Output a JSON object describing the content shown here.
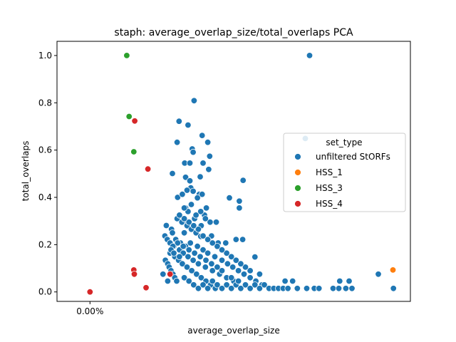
{
  "chart_data": {
    "type": "scatter",
    "title": "staph: average_overlap_size/total_overlaps PCA",
    "xlabel": "average_overlap_size",
    "ylabel": "total_overlaps",
    "ylim": [
      -0.04,
      1.06
    ],
    "yticks": [
      0.0,
      0.2,
      0.4,
      0.6,
      0.8,
      1.0
    ],
    "ytick_labels": [
      "0.0",
      "0.2",
      "0.4",
      "0.6",
      "0.8",
      "1.0"
    ],
    "xticks": [
      0.0
    ],
    "xtick_labels": [
      "0.00%"
    ],
    "xlim": [
      -0.0007,
      0.0068
    ],
    "grid": false,
    "legend": {
      "title": "set_type",
      "placement": "center-right"
    },
    "series": [
      {
        "name": "unfiltered StORFs",
        "color": "#1f77b4",
        "points": [
          [
            0.00466,
            1.0
          ],
          [
            0.00457,
            0.649
          ],
          [
            0.00221,
            0.809
          ],
          [
            0.00189,
            0.722
          ],
          [
            0.00208,
            0.706
          ],
          [
            0.00238,
            0.662
          ],
          [
            0.00185,
            0.633
          ],
          [
            0.0025,
            0.633
          ],
          [
            0.00217,
            0.605
          ],
          [
            0.00219,
            0.591
          ],
          [
            0.00254,
            0.574
          ],
          [
            0.00201,
            0.545
          ],
          [
            0.00212,
            0.545
          ],
          [
            0.0024,
            0.545
          ],
          [
            0.00175,
            0.501
          ],
          [
            0.00203,
            0.485
          ],
          [
            0.00212,
            0.47
          ],
          [
            0.00234,
            0.487
          ],
          [
            0.00252,
            0.518
          ],
          [
            0.00214,
            0.44
          ],
          [
            0.00219,
            0.426
          ],
          [
            0.00232,
            0.413
          ],
          [
            0.00238,
            0.413
          ],
          [
            0.00325,
            0.472
          ],
          [
            0.00296,
            0.398
          ],
          [
            0.00317,
            0.384
          ],
          [
            0.00317,
            0.355
          ],
          [
            0.00203,
            0.355
          ],
          [
            0.00247,
            0.355
          ],
          [
            0.00243,
            0.325
          ],
          [
            0.00222,
            0.31
          ],
          [
            0.00255,
            0.295
          ],
          [
            0.00268,
            0.295
          ],
          [
            0.00203,
            0.295
          ],
          [
            0.00206,
            0.28
          ],
          [
            0.00236,
            0.28
          ],
          [
            0.00258,
            0.237
          ],
          [
            0.0031,
            0.222
          ],
          [
            0.00324,
            0.222
          ],
          [
            0.00288,
            0.207
          ],
          [
            0.00272,
            0.207
          ],
          [
            0.0035,
            0.148
          ],
          [
            0.00162,
            0.281
          ],
          [
            0.00173,
            0.265
          ],
          [
            0.00159,
            0.237
          ],
          [
            0.00164,
            0.222
          ],
          [
            0.0017,
            0.207
          ],
          [
            0.00178,
            0.193
          ],
          [
            0.0019,
            0.178
          ],
          [
            0.00198,
            0.164
          ],
          [
            0.00208,
            0.149
          ],
          [
            0.00219,
            0.134
          ],
          [
            0.0023,
            0.119
          ],
          [
            0.00245,
            0.105
          ],
          [
            0.0026,
            0.09
          ],
          [
            0.00275,
            0.075
          ],
          [
            0.0029,
            0.06
          ],
          [
            0.00305,
            0.046
          ],
          [
            0.00185,
            0.31
          ],
          [
            0.00195,
            0.295
          ],
          [
            0.00175,
            0.25
          ],
          [
            0.002,
            0.25
          ],
          [
            0.00215,
            0.265
          ],
          [
            0.00225,
            0.25
          ],
          [
            0.00235,
            0.235
          ],
          [
            0.00182,
            0.222
          ],
          [
            0.00192,
            0.207
          ],
          [
            0.00203,
            0.193
          ],
          [
            0.00213,
            0.207
          ],
          [
            0.00228,
            0.193
          ],
          [
            0.0024,
            0.178
          ],
          [
            0.0025,
            0.164
          ],
          [
            0.00265,
            0.149
          ],
          [
            0.0028,
            0.134
          ],
          [
            0.00292,
            0.119
          ],
          [
            0.00303,
            0.105
          ],
          [
            0.00315,
            0.09
          ],
          [
            0.00327,
            0.075
          ],
          [
            0.0034,
            0.06
          ],
          [
            0.00352,
            0.046
          ],
          [
            0.00365,
            0.03
          ],
          [
            0.0017,
            0.164
          ],
          [
            0.0018,
            0.149
          ],
          [
            0.00188,
            0.134
          ],
          [
            0.00196,
            0.119
          ],
          [
            0.00206,
            0.105
          ],
          [
            0.00216,
            0.09
          ],
          [
            0.00226,
            0.075
          ],
          [
            0.00236,
            0.06
          ],
          [
            0.00246,
            0.046
          ],
          [
            0.00256,
            0.03
          ],
          [
            0.00266,
            0.015
          ],
          [
            0.0016,
            0.134
          ],
          [
            0.00165,
            0.119
          ],
          [
            0.00168,
            0.105
          ],
          [
            0.00172,
            0.09
          ],
          [
            0.00176,
            0.075
          ],
          [
            0.0018,
            0.06
          ],
          [
            0.00184,
            0.046
          ],
          [
            0.00155,
            0.075
          ],
          [
            0.00165,
            0.046
          ],
          [
            0.002,
            0.06
          ],
          [
            0.0021,
            0.046
          ],
          [
            0.0022,
            0.03
          ],
          [
            0.0023,
            0.015
          ],
          [
            0.0024,
            0.03
          ],
          [
            0.0025,
            0.015
          ],
          [
            0.0026,
            0.046
          ],
          [
            0.0027,
            0.03
          ],
          [
            0.0028,
            0.015
          ],
          [
            0.0029,
            0.03
          ],
          [
            0.003,
            0.015
          ],
          [
            0.0031,
            0.03
          ],
          [
            0.0032,
            0.015
          ],
          [
            0.0033,
            0.03
          ],
          [
            0.0034,
            0.015
          ],
          [
            0.0035,
            0.03
          ],
          [
            0.0036,
            0.015
          ],
          [
            0.0037,
            0.03
          ],
          [
            0.0038,
            0.015
          ],
          [
            0.0039,
            0.015
          ],
          [
            0.004,
            0.015
          ],
          [
            0.0041,
            0.015
          ],
          [
            0.0042,
            0.015
          ],
          [
            0.0044,
            0.015
          ],
          [
            0.0046,
            0.015
          ],
          [
            0.00476,
            0.015
          ],
          [
            0.00486,
            0.015
          ],
          [
            0.00516,
            0.015
          ],
          [
            0.00528,
            0.015
          ],
          [
            0.00543,
            0.015
          ],
          [
            0.00556,
            0.015
          ],
          [
            0.00644,
            0.015
          ],
          [
            0.0053,
            0.046
          ],
          [
            0.0055,
            0.046
          ],
          [
            0.00414,
            0.046
          ],
          [
            0.0043,
            0.046
          ],
          [
            0.00612,
            0.075
          ],
          [
            0.0036,
            0.075
          ],
          [
            0.0034,
            0.09
          ],
          [
            0.0033,
            0.105
          ],
          [
            0.0032,
            0.119
          ],
          [
            0.0031,
            0.134
          ],
          [
            0.003,
            0.149
          ],
          [
            0.0029,
            0.164
          ],
          [
            0.0028,
            0.178
          ],
          [
            0.0027,
            0.193
          ],
          [
            0.0026,
            0.207
          ],
          [
            0.0025,
            0.222
          ],
          [
            0.0024,
            0.237
          ],
          [
            0.0023,
            0.265
          ],
          [
            0.0022,
            0.28
          ],
          [
            0.0021,
            0.295
          ],
          [
            0.002,
            0.31
          ],
          [
            0.0019,
            0.325
          ],
          [
            0.00235,
            0.34
          ],
          [
            0.00245,
            0.31
          ],
          [
            0.00225,
            0.325
          ],
          [
            0.00208,
            0.34
          ],
          [
            0.002,
            0.355
          ],
          [
            0.00215,
            0.37
          ],
          [
            0.00228,
            0.398
          ],
          [
            0.00186,
            0.4
          ],
          [
            0.00196,
            0.413
          ],
          [
            0.00206,
            0.43
          ],
          [
            0.003,
            0.06
          ],
          [
            0.00315,
            0.046
          ],
          [
            0.0028,
            0.09
          ],
          [
            0.0027,
            0.105
          ],
          [
            0.00258,
            0.119
          ],
          [
            0.00246,
            0.134
          ],
          [
            0.00234,
            0.149
          ],
          [
            0.00222,
            0.164
          ],
          [
            0.0021,
            0.178
          ],
          [
            0.00198,
            0.193
          ],
          [
            0.00186,
            0.207
          ],
          [
            0.00176,
            0.193
          ],
          [
            0.00172,
            0.178
          ],
          [
            0.00178,
            0.164
          ],
          [
            0.0019,
            0.149
          ]
        ]
      },
      {
        "name": "HSS_1",
        "color": "#ff7f0e",
        "points": [
          [
            0.00643,
            0.093
          ]
        ]
      },
      {
        "name": "HSS_3",
        "color": "#2ca02c",
        "points": [
          [
            0.00078,
            1.0
          ],
          [
            0.00083,
            0.742
          ],
          [
            0.00093,
            0.593
          ]
        ]
      },
      {
        "name": "HSS_4",
        "color": "#d62728",
        "points": [
          [
            0.0,
            0.0
          ],
          [
            0.00095,
            0.723
          ],
          [
            0.00123,
            0.52
          ],
          [
            0.00093,
            0.093
          ],
          [
            0.00094,
            0.075
          ],
          [
            0.00119,
            0.018
          ],
          [
            0.0017,
            0.075
          ]
        ]
      }
    ]
  }
}
